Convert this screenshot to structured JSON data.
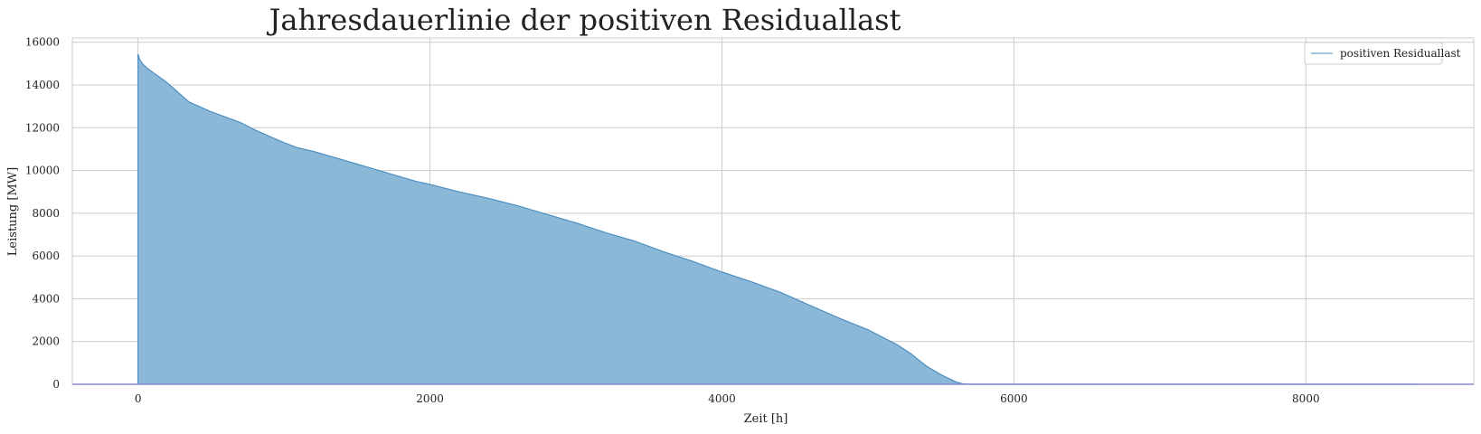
{
  "chart_data": {
    "type": "area",
    "title": "Jahresdauerlinie der positiven Residuallast",
    "xlabel": "Zeit [h]",
    "ylabel": "Leistung [MW]",
    "xlim": [
      -450,
      9150
    ],
    "ylim": [
      0,
      16200
    ],
    "xticks": [
      0,
      2000,
      4000,
      6000,
      8000
    ],
    "yticks": [
      0,
      2000,
      4000,
      6000,
      8000,
      10000,
      12000,
      14000,
      16000
    ],
    "grid": true,
    "legend_position": "top-right",
    "colors": {
      "fill": "#8cb8d8",
      "line": "#4a8fc2",
      "zero_line": "#0000cc",
      "grid": "#cccccc"
    },
    "series": [
      {
        "name": "positiven Residuallast",
        "x": [
          0,
          10,
          30,
          60,
          100,
          160,
          200,
          250,
          300,
          350,
          400,
          500,
          600,
          700,
          800,
          900,
          1000,
          1100,
          1200,
          1300,
          1400,
          1500,
          1600,
          1700,
          1800,
          1900,
          2000,
          2200,
          2400,
          2600,
          2800,
          3000,
          3200,
          3400,
          3600,
          3800,
          4000,
          4200,
          4400,
          4600,
          4800,
          5000,
          5200,
          5300,
          5400,
          5500,
          5600,
          5650,
          5700,
          8760
        ],
        "values": [
          15450,
          15200,
          15000,
          14800,
          14600,
          14300,
          14100,
          13800,
          13500,
          13200,
          13050,
          12750,
          12500,
          12250,
          11900,
          11600,
          11300,
          11050,
          10900,
          10700,
          10500,
          10300,
          10100,
          9900,
          9700,
          9500,
          9350,
          9000,
          8700,
          8350,
          7950,
          7550,
          7100,
          6700,
          6200,
          5750,
          5250,
          4800,
          4300,
          3700,
          3100,
          2550,
          1850,
          1400,
          850,
          450,
          120,
          20,
          0,
          0
        ]
      }
    ]
  }
}
